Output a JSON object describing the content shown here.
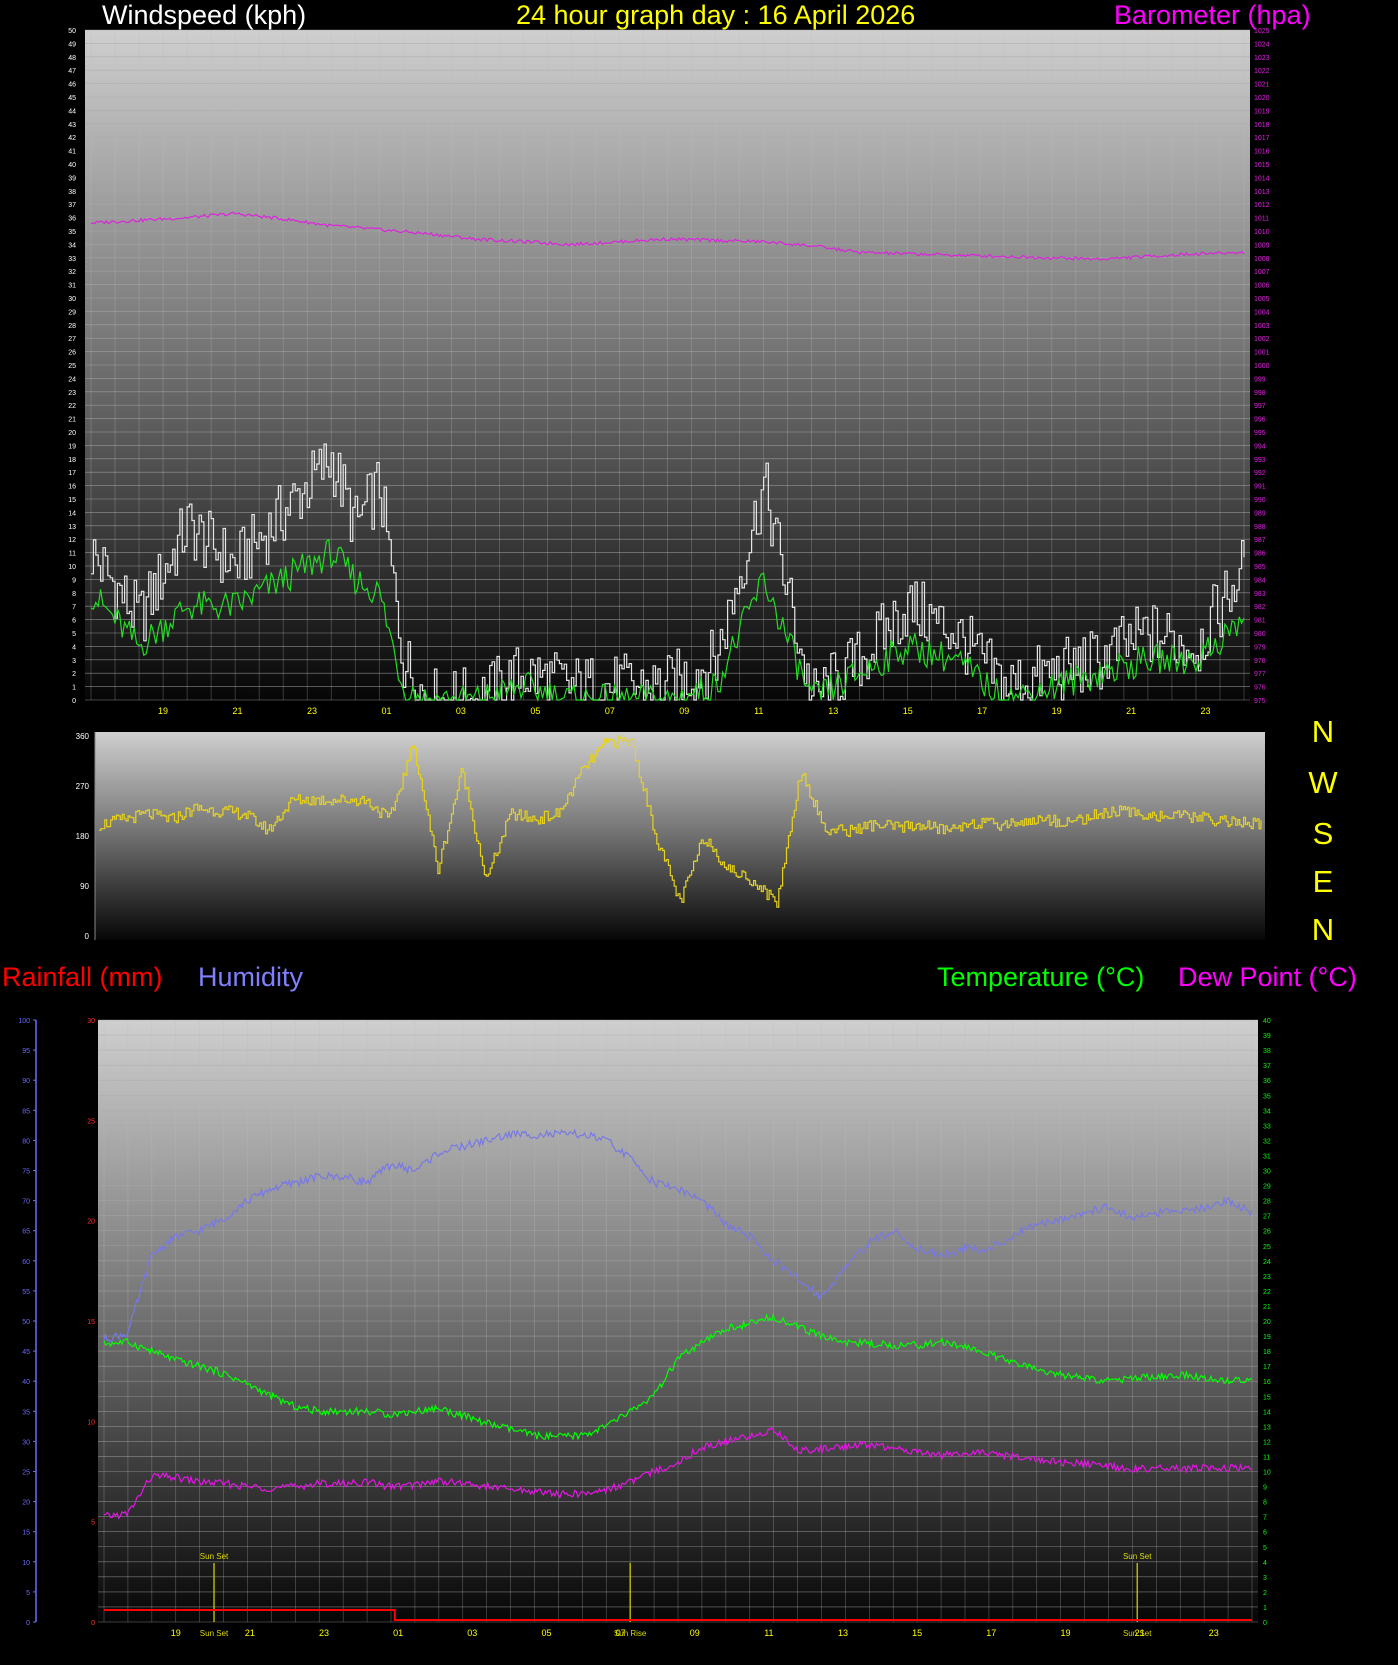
{
  "header": {
    "wind_title": "Windspeed (kph)",
    "date_title": "24 hour graph day : 16 April 2026",
    "baro_title": "Barometer (hpa)",
    "rain_title": "Rainfall (mm)",
    "humidity_title": "Humidity",
    "temp_title": "Temperature (°C)",
    "dew_title": "Dew Point (°C)"
  },
  "direction_labels": [
    "N",
    "W",
    "S",
    "E",
    "N"
  ],
  "colors": {
    "wind_gust": "#e6e6e6",
    "wind_avg": "#22dd22",
    "barometer": "#dd22dd",
    "direction": "#e6d21e",
    "rain": "#ff0000",
    "humidity": "#7878e6",
    "temperature": "#00ff00",
    "dewpoint": "#e614e6",
    "sun_marker": "#dcdc00"
  },
  "chart_data": [
    {
      "type": "line",
      "title": "Windspeed (kph) / Barometer (hpa)",
      "x_tick_labels": [
        "19",
        "21",
        "23",
        "01",
        "03",
        "05",
        "07",
        "09",
        "11",
        "13",
        "15",
        "17",
        "19",
        "21",
        "23"
      ],
      "y_left_range": [
        0,
        50
      ],
      "y_right_range": [
        975,
        1025
      ],
      "grid": true,
      "series": [
        {
          "name": "Gust",
          "axis": "left",
          "x": [
            0,
            1,
            2,
            3,
            4,
            5,
            5.5,
            6,
            6.5,
            7,
            8,
            9,
            10,
            11,
            12,
            13,
            14,
            15,
            16,
            17,
            18,
            19,
            20,
            21,
            22,
            23,
            24
          ],
          "values": [
            11,
            6,
            13,
            10,
            14,
            18,
            13,
            16,
            3,
            0,
            0,
            2,
            1,
            1,
            1,
            3,
            16,
            0,
            3,
            7,
            5,
            1,
            2,
            3,
            5,
            4,
            10
          ]
        },
        {
          "name": "Average",
          "axis": "left",
          "x": [
            0,
            1,
            2,
            3,
            4,
            5,
            5.5,
            6,
            6.5,
            7,
            8,
            9,
            10,
            11,
            12,
            13,
            14,
            15,
            16,
            17,
            18,
            19,
            20,
            21,
            22,
            23,
            24
          ],
          "values": [
            8,
            4,
            7,
            7,
            9,
            11,
            9,
            8,
            1,
            0,
            0,
            1,
            0,
            0,
            0,
            1,
            9,
            0,
            2,
            4,
            3,
            0,
            1,
            2,
            3,
            3,
            6
          ]
        },
        {
          "name": "Barometer",
          "axis": "right",
          "x": [
            0,
            1,
            2,
            3,
            4,
            5,
            6,
            7,
            8,
            9,
            10,
            11,
            12,
            13,
            14,
            15,
            16,
            17,
            18,
            19,
            20,
            21,
            22,
            23,
            24
          ],
          "values": [
            1010.6,
            1010.8,
            1011.0,
            1011.3,
            1010.9,
            1010.4,
            1010.1,
            1009.8,
            1009.4,
            1009.2,
            1009.0,
            1009.2,
            1009.4,
            1009.3,
            1009.2,
            1008.9,
            1008.4,
            1008.3,
            1008.2,
            1008.1,
            1008.0,
            1007.9,
            1008.1,
            1008.3,
            1008.4
          ]
        }
      ]
    },
    {
      "type": "line",
      "title": "Wind direction",
      "y_range": [
        0,
        360
      ],
      "y_tick_labels": [
        "0",
        "90",
        "180",
        "270",
        "360"
      ],
      "grid": false,
      "series": [
        {
          "name": "Direction",
          "x": [
            0,
            0.5,
            1,
            1.5,
            2,
            2.5,
            3,
            3.5,
            4,
            4.5,
            5,
            5.5,
            6,
            6.5,
            7,
            7.5,
            8,
            8.5,
            9,
            9.5,
            10,
            10.5,
            11,
            11.5,
            12,
            12.5,
            13,
            13.5,
            14,
            14.5,
            15,
            15.5,
            16,
            16.5,
            17,
            17.5,
            18,
            18.5,
            19,
            19.5,
            20,
            20.5,
            21,
            21.5,
            22,
            22.5,
            23,
            23.5,
            24
          ],
          "values": [
            200,
            210,
            220,
            210,
            230,
            225,
            220,
            190,
            245,
            245,
            245,
            245,
            210,
            345,
            120,
            300,
            100,
            220,
            210,
            220,
            300,
            350,
            350,
            180,
            60,
            180,
            120,
            100,
            60,
            300,
            190,
            190,
            200,
            195,
            200,
            190,
            205,
            200,
            205,
            210,
            205,
            215,
            225,
            220,
            215,
            215,
            210,
            205,
            200
          ]
        }
      ]
    },
    {
      "type": "line",
      "title": "Rainfall (mm) / Humidity / Temperature (°C) / Dew Point (°C)",
      "x_tick_labels": [
        "19",
        "Sun Set",
        "21",
        "23",
        "01",
        "03",
        "05",
        "Sun Rise",
        "07",
        "09",
        "11",
        "13",
        "15",
        "17",
        "19",
        "Sun Set",
        "21",
        "23"
      ],
      "annotations": [
        "Sun Set",
        "Sun Rise",
        "Sun Set"
      ],
      "y_rain_range": [
        0,
        30
      ],
      "y_humidity_range": [
        0,
        100
      ],
      "y_temp_range": [
        0,
        40
      ],
      "grid": true,
      "series": [
        {
          "name": "Rainfall",
          "axis": "rain",
          "x": [
            0,
            1,
            2,
            3,
            4,
            5,
            6,
            6.01,
            7,
            8,
            9,
            10,
            11,
            12,
            13,
            14,
            15,
            16,
            17,
            18,
            19,
            20,
            21,
            22,
            23,
            24
          ],
          "values": [
            0.6,
            0.6,
            0.6,
            0.6,
            0.6,
            0.6,
            0.6,
            0.1,
            0.1,
            0.1,
            0.1,
            0.1,
            0.1,
            0.1,
            0.1,
            0.1,
            0.1,
            0.1,
            0.1,
            0.1,
            0.1,
            0.1,
            0.1,
            0.1,
            0.1,
            0.1
          ]
        },
        {
          "name": "Humidity",
          "axis": "humidity",
          "x": [
            0,
            0.5,
            1,
            1.5,
            2,
            2.5,
            3,
            3.5,
            4,
            4.5,
            5,
            5.5,
            6,
            6.5,
            7,
            7.5,
            8,
            8.5,
            9,
            9.5,
            10,
            10.5,
            11,
            11.5,
            12,
            12.5,
            13,
            13.5,
            14,
            14.5,
            15,
            15.5,
            16,
            16.5,
            17,
            17.5,
            18,
            18.5,
            19,
            19.5,
            20,
            20.5,
            21,
            21.5,
            22,
            22.5,
            23,
            23.5,
            24
          ],
          "values": [
            47,
            48,
            61,
            64,
            65,
            67,
            70,
            72,
            73,
            74,
            74,
            73,
            76,
            75,
            78,
            79,
            80,
            81,
            81,
            81,
            81,
            80,
            77,
            73,
            72,
            70,
            66,
            64,
            60,
            57,
            54,
            59,
            63,
            65,
            62,
            61,
            62,
            62,
            64,
            66,
            67,
            68,
            69,
            67,
            68,
            68,
            69,
            70,
            68
          ]
        },
        {
          "name": "Temperature",
          "axis": "temp",
          "x": [
            0,
            0.5,
            1,
            1.5,
            2,
            2.5,
            3,
            3.5,
            4,
            4.5,
            5,
            5.5,
            6,
            6.5,
            7,
            7.5,
            8,
            8.5,
            9,
            9.5,
            10,
            10.5,
            11,
            11.5,
            12,
            12.5,
            13,
            13.5,
            14,
            14.5,
            15,
            15.5,
            16,
            16.5,
            17,
            17.5,
            18,
            18.5,
            19,
            19.5,
            20,
            20.5,
            21,
            21.5,
            22,
            22.5,
            23,
            23.5,
            24
          ],
          "values": [
            18.5,
            18.6,
            18.0,
            17.4,
            17.0,
            16.5,
            15.8,
            15.0,
            14.3,
            14.0,
            14.0,
            14.0,
            13.8,
            14.0,
            14.2,
            13.7,
            13.2,
            12.8,
            12.4,
            12.3,
            12.4,
            13.0,
            14.0,
            15.0,
            17.5,
            18.5,
            19.5,
            19.8,
            20.3,
            19.6,
            19.0,
            18.6,
            18.5,
            18.4,
            18.4,
            18.6,
            18.3,
            17.8,
            17.2,
            16.8,
            16.4,
            16.2,
            16.0,
            16.2,
            16.3,
            16.4,
            16.2,
            16.0,
            16.2
          ]
        },
        {
          "name": "Dew Point",
          "axis": "temp",
          "x": [
            0,
            0.5,
            1,
            1.5,
            2,
            2.5,
            3,
            3.5,
            4,
            4.5,
            5,
            5.5,
            6,
            6.5,
            7,
            7.5,
            8,
            8.5,
            9,
            9.5,
            10,
            10.5,
            11,
            11.5,
            12,
            12.5,
            13,
            13.5,
            14,
            14.5,
            15,
            15.5,
            16,
            16.5,
            17,
            17.5,
            18,
            18.5,
            19,
            19.5,
            20,
            20.5,
            21,
            21.5,
            22,
            22.5,
            23,
            23.5,
            24
          ],
          "values": [
            7.0,
            7.2,
            9.7,
            9.6,
            9.3,
            9.2,
            9.0,
            8.9,
            9.0,
            9.2,
            9.2,
            9.3,
            9.0,
            9.1,
            9.4,
            9.2,
            9.0,
            8.8,
            8.7,
            8.5,
            8.5,
            8.8,
            9.3,
            10.0,
            10.6,
            11.6,
            12.0,
            12.3,
            12.8,
            11.4,
            11.5,
            11.7,
            11.8,
            11.5,
            11.3,
            11.1,
            11.2,
            11.2,
            11.0,
            10.8,
            10.6,
            10.5,
            10.3,
            10.2,
            10.2,
            10.2,
            10.2,
            10.2,
            10.2
          ]
        }
      ]
    }
  ]
}
